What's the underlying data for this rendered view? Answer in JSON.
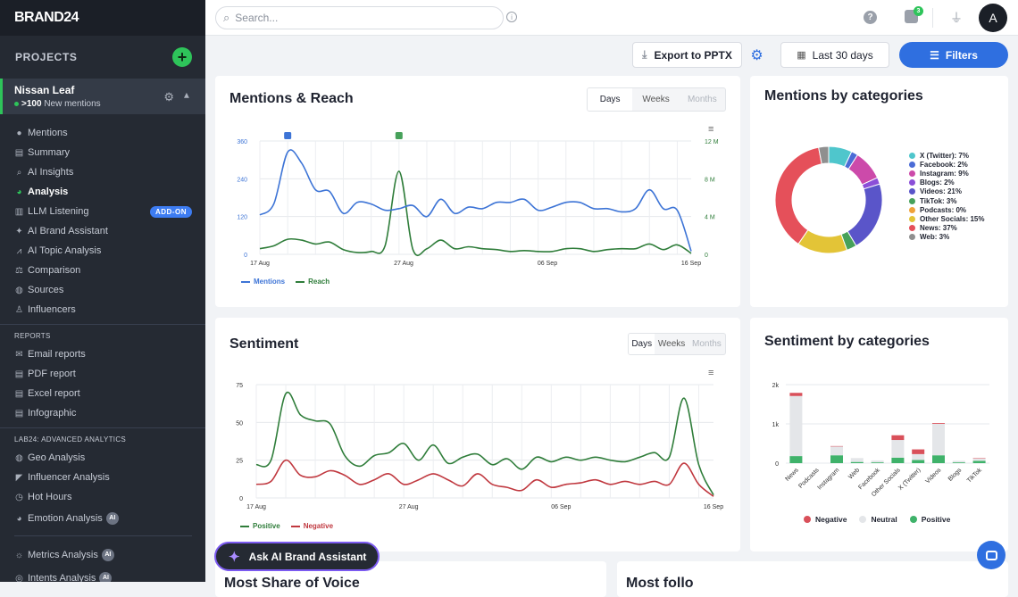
{
  "brand": "BRAND24",
  "sidebar": {
    "projects_label": "PROJECTS",
    "project": {
      "name": "Nissan Leaf",
      "count": ">100",
      "mentions_label": "New mentions"
    },
    "nav": [
      {
        "label": "Mentions",
        "icon": "chat-bubble-icon"
      },
      {
        "label": "Summary",
        "icon": "document-icon"
      },
      {
        "label": "AI Insights",
        "icon": "magnifier-sparkle-icon"
      },
      {
        "label": "Analysis",
        "icon": "pie-chart-icon",
        "active": true
      },
      {
        "label": "LLM Listening",
        "icon": "bar-chart-icon",
        "badge": "ADD-ON"
      },
      {
        "label": "AI Brand Assistant",
        "icon": "sparkle-icon"
      },
      {
        "label": "AI Topic Analysis",
        "icon": "line-chart-icon"
      },
      {
        "label": "Comparison",
        "icon": "scales-icon"
      },
      {
        "label": "Sources",
        "icon": "globe-icon"
      },
      {
        "label": "Influencers",
        "icon": "person-icon"
      }
    ],
    "reports_label": "REPORTS",
    "reports": [
      {
        "label": "Email reports",
        "icon": "envelope-icon"
      },
      {
        "label": "PDF report",
        "icon": "pdf-file-icon"
      },
      {
        "label": "Excel report",
        "icon": "excel-file-icon"
      },
      {
        "label": "Infographic",
        "icon": "infographic-file-icon"
      }
    ],
    "lab_label": "LAB24: ADVANCED ANALYTICS",
    "lab": [
      {
        "label": "Geo Analysis",
        "icon": "globe-icon"
      },
      {
        "label": "Influencer Analysis",
        "icon": "megaphone-icon"
      },
      {
        "label": "Hot Hours",
        "icon": "clock-icon"
      },
      {
        "label": "Emotion Analysis",
        "icon": "pie-chart-icon",
        "ai": "AI"
      }
    ],
    "lab2": [
      {
        "label": "Metrics Analysis",
        "icon": "lightbulb-icon",
        "ai": "AI"
      },
      {
        "label": "Intents Analysis",
        "icon": "target-icon",
        "ai": "AI"
      }
    ]
  },
  "topbar": {
    "search_placeholder": "Search...",
    "notifications": "3",
    "avatar": "A"
  },
  "actions": {
    "export": "Export to PPTX",
    "date_range": "Last 30 days",
    "filters": "Filters"
  },
  "colors": {
    "accent": "#2f6fe0",
    "green": "#2ec45a",
    "sidebar": "#252a33",
    "mentions": "#3d74d6",
    "reach": "#2f7d3a",
    "positive": "#2f7d3a",
    "negative": "#c0383f"
  },
  "mentions_reach": {
    "title": "Mentions & Reach",
    "tabs": [
      "Days",
      "Weeks",
      "Months"
    ],
    "legend": [
      "Mentions",
      "Reach"
    ]
  },
  "sentiment": {
    "title": "Sentiment",
    "tabs": [
      "Days",
      "Weeks",
      "Months"
    ],
    "legend": [
      "Positive",
      "Negative"
    ]
  },
  "categories": {
    "title": "Mentions by categories"
  },
  "sentiment_categories": {
    "title": "Sentiment by categories",
    "legend": [
      "Negative",
      "Neutral",
      "Positive"
    ]
  },
  "bottom": {
    "left_title": "Most Share of Voice",
    "right_title": "Most follo"
  },
  "ai_button": "Ask AI Brand Assistant",
  "chart_data": [
    {
      "type": "line",
      "title": "Mentions & Reach",
      "x_ticks": [
        "17 Aug",
        "27 Aug",
        "06 Sep",
        "16 Sep"
      ],
      "y_left_ticks": [
        "0",
        "120",
        "240",
        "360"
      ],
      "y_right_ticks": [
        "0",
        "4 M",
        "8 M",
        "12 M"
      ],
      "ylim_left": [
        0,
        360
      ],
      "ylim_right": [
        0,
        12
      ],
      "series": [
        {
          "name": "Mentions",
          "axis": "left",
          "values": [
            125,
            160,
            325,
            290,
            205,
            200,
            130,
            165,
            160,
            140,
            145,
            155,
            120,
            175,
            130,
            150,
            145,
            165,
            165,
            175,
            140,
            150,
            165,
            165,
            145,
            145,
            135,
            145,
            205,
            145,
            140,
            10
          ]
        },
        {
          "name": "Reach",
          "axis": "right",
          "values": [
            0.6,
            0.9,
            1.6,
            1.5,
            1.1,
            1.3,
            0.5,
            0.2,
            0.3,
            0.9,
            8.8,
            0.5,
            0.6,
            1.5,
            0.6,
            0.8,
            0.6,
            0.5,
            0.3,
            0.4,
            0.3,
            0.3,
            0.6,
            0.6,
            0.3,
            0.5,
            0.6,
            0.6,
            1.1,
            0.5,
            1.0,
            0.1
          ]
        }
      ],
      "markers": [
        {
          "series": "Mentions",
          "index": 2
        },
        {
          "series": "Reach",
          "index": 10
        }
      ]
    },
    {
      "type": "pie",
      "title": "Mentions by categories",
      "labels": [
        "X (Twitter): 7%",
        "Facebook: 2%",
        "Instagram: 9%",
        "Blogs: 2%",
        "Videos: 21%",
        "TikTok: 3%",
        "Podcasts: 0%",
        "Other Socials: 15%",
        "News: 37%",
        "Web: 3%"
      ],
      "values": [
        7,
        2,
        9,
        2,
        21,
        3,
        0,
        15,
        37,
        3
      ],
      "colors": [
        "#4fc6cc",
        "#4b6cd6",
        "#cc4aaa",
        "#8b4fd8",
        "#5a55c9",
        "#47a15a",
        "#efa23a",
        "#e3c437",
        "#e5505a",
        "#8f8f8f"
      ]
    },
    {
      "type": "line",
      "title": "Sentiment",
      "x_ticks": [
        "17 Aug",
        "27 Aug",
        "06 Sep",
        "16 Sep"
      ],
      "y_ticks": [
        "0",
        "25",
        "50",
        "75"
      ],
      "ylim": [
        0,
        75
      ],
      "series": [
        {
          "name": "Positive",
          "values": [
            22,
            25,
            69,
            55,
            51,
            49,
            28,
            21,
            28,
            30,
            36,
            25,
            35,
            23,
            27,
            29,
            22,
            26,
            19,
            27,
            24,
            27,
            25,
            27,
            25,
            24,
            27,
            30,
            27,
            66,
            22,
            2
          ]
        },
        {
          "name": "Negative",
          "values": [
            9,
            11,
            25,
            15,
            14,
            18,
            15,
            9,
            12,
            16,
            9,
            12,
            16,
            12,
            8,
            16,
            9,
            7,
            5,
            12,
            7,
            9,
            10,
            12,
            9,
            11,
            9,
            11,
            9,
            23,
            9,
            1
          ]
        }
      ]
    },
    {
      "type": "bar",
      "stacked": true,
      "title": "Sentiment by categories",
      "categories": [
        "News",
        "Podcasts",
        "Instagram",
        "Web",
        "Facebook",
        "Other Socials",
        "X (Twitter)",
        "Videos",
        "Blogs",
        "TikTok"
      ],
      "y_ticks": [
        "0",
        "1k",
        "2k"
      ],
      "ylim": [
        0,
        2000
      ],
      "series": [
        {
          "name": "Positive",
          "values": [
            180,
            0,
            200,
            30,
            20,
            140,
            80,
            200,
            20,
            60
          ]
        },
        {
          "name": "Neutral",
          "values": [
            1530,
            0,
            230,
            100,
            50,
            450,
            150,
            800,
            40,
            60
          ]
        },
        {
          "name": "Negative",
          "values": [
            80,
            0,
            5,
            0,
            0,
            120,
            120,
            20,
            0,
            10
          ]
        }
      ]
    }
  ]
}
